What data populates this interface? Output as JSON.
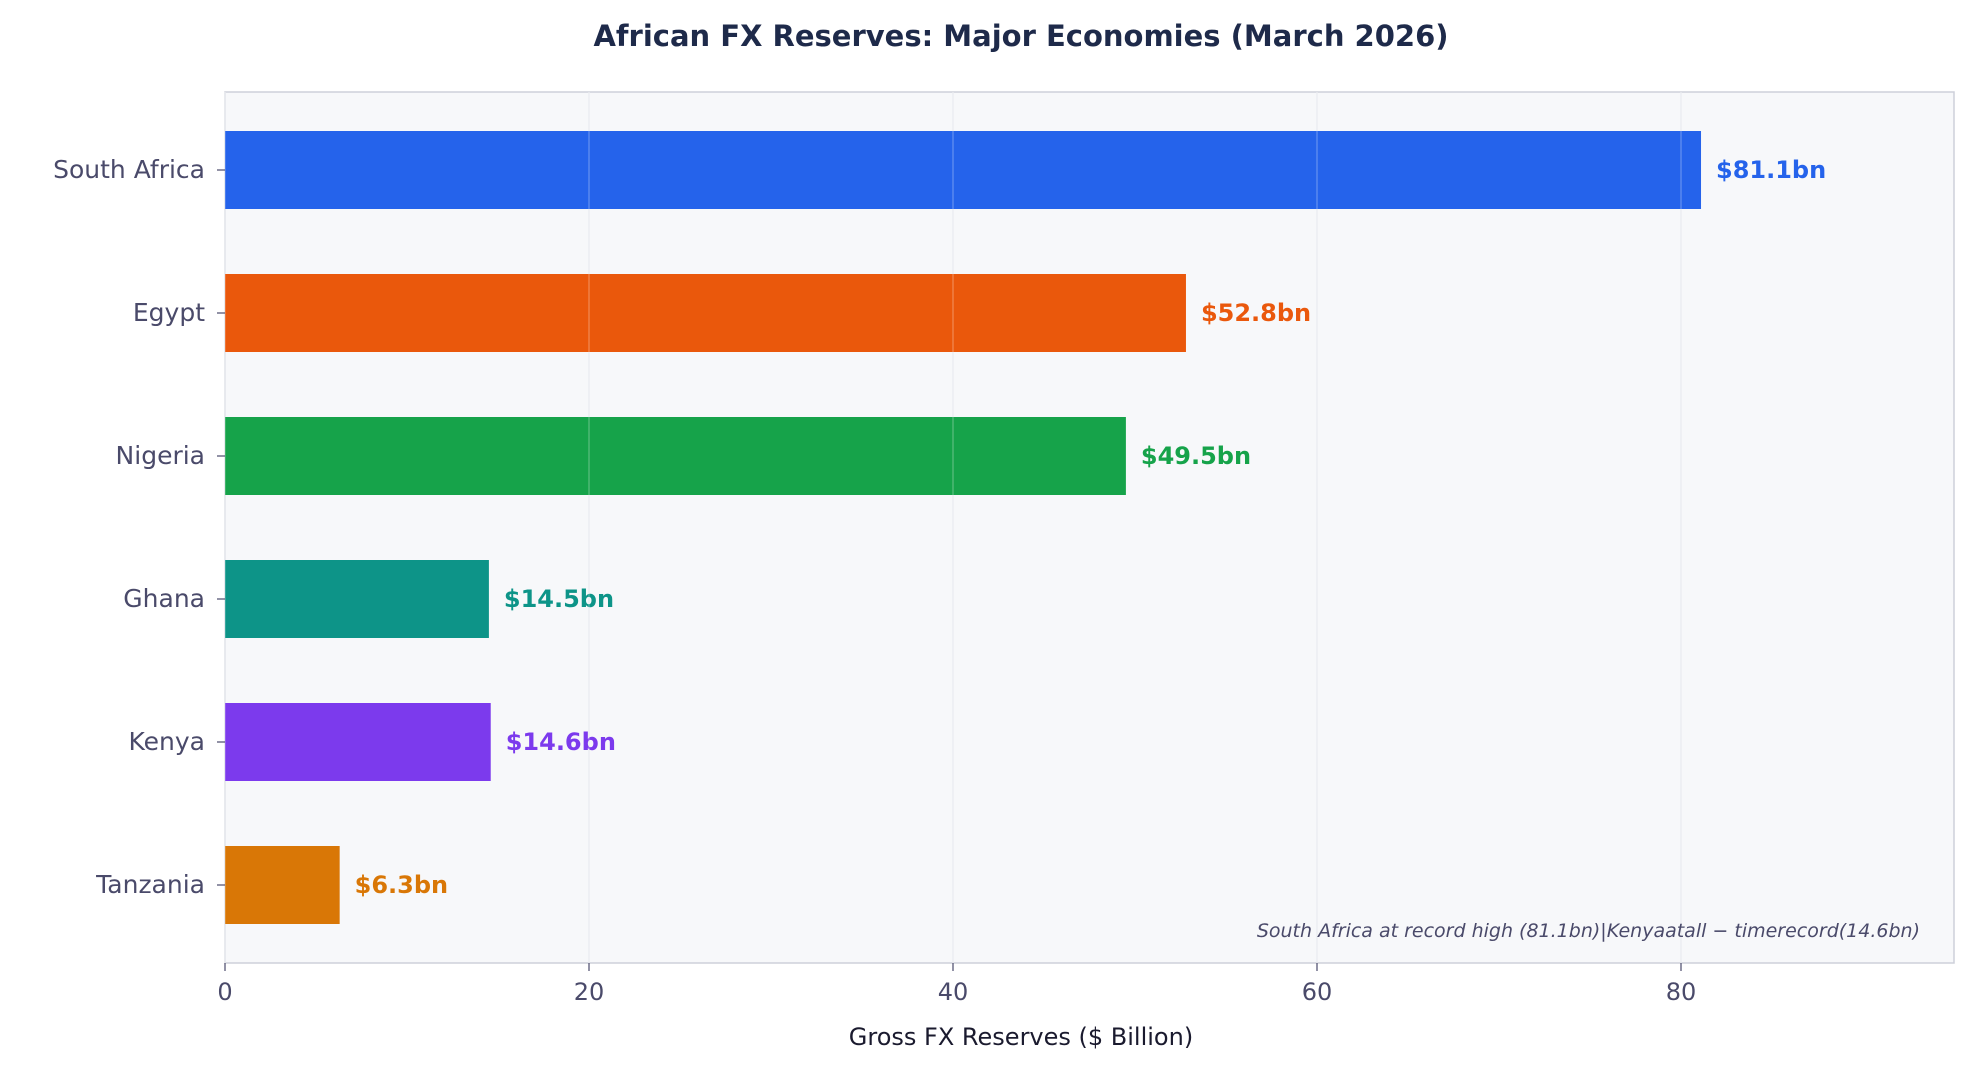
{
  "chart_data": {
    "type": "bar",
    "orientation": "horizontal",
    "title": "African FX Reserves: Major Economies (March 2026)",
    "xlabel": "Gross FX Reserves ($ Billion)",
    "ylabel": "",
    "xlim": [
      0,
      95
    ],
    "xticks": [
      0,
      20,
      40,
      60,
      80
    ],
    "grid": "vertical",
    "categories": [
      "South Africa",
      "Egypt",
      "Nigeria",
      "Ghana",
      "Kenya",
      "Tanzania"
    ],
    "values": [
      81.1,
      52.8,
      49.5,
      14.5,
      14.6,
      6.3
    ],
    "data_labels": [
      "$81.1bn",
      "$52.8bn",
      "$49.5bn",
      "$14.5bn",
      "$14.6bn",
      "$6.3bn"
    ],
    "colors": [
      "#2563eb",
      "#ea580c",
      "#16a34a",
      "#0d9488",
      "#7c3aed",
      "#d97706"
    ],
    "annotation": "South Africa at record high (81.1bn)|Kenyaatall − timerecord(14.6bn)"
  }
}
